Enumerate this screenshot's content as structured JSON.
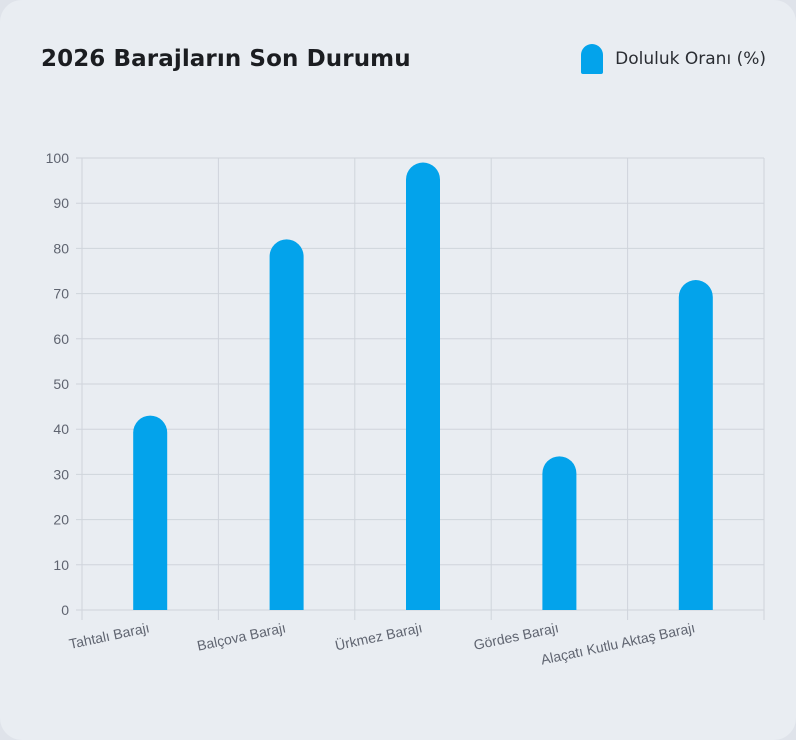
{
  "header": {
    "title": "2026 Barajların Son Durumu"
  },
  "legend": {
    "label": "Doluluk Oranı (%)",
    "color": "#03a3eb"
  },
  "chart_data": {
    "type": "bar",
    "title": "2026 Barajların Son Durumu",
    "categories": [
      "Tahtalı Barajı",
      "Balçova Barajı",
      "Ürkmez Barajı",
      "Gördes Barajı",
      "Alaçatı Kutlu Aktaş Barajı"
    ],
    "series": [
      {
        "name": "Doluluk Oranı (%)",
        "values": [
          43,
          82,
          99,
          34,
          73
        ],
        "color": "#03a3eb"
      }
    ],
    "xlabel": "",
    "ylabel": "",
    "ylim": [
      0,
      100
    ],
    "yticks": [
      0,
      10,
      20,
      30,
      40,
      50,
      60,
      70,
      80,
      90,
      100
    ],
    "grid": true,
    "legend_position": "top-right"
  }
}
